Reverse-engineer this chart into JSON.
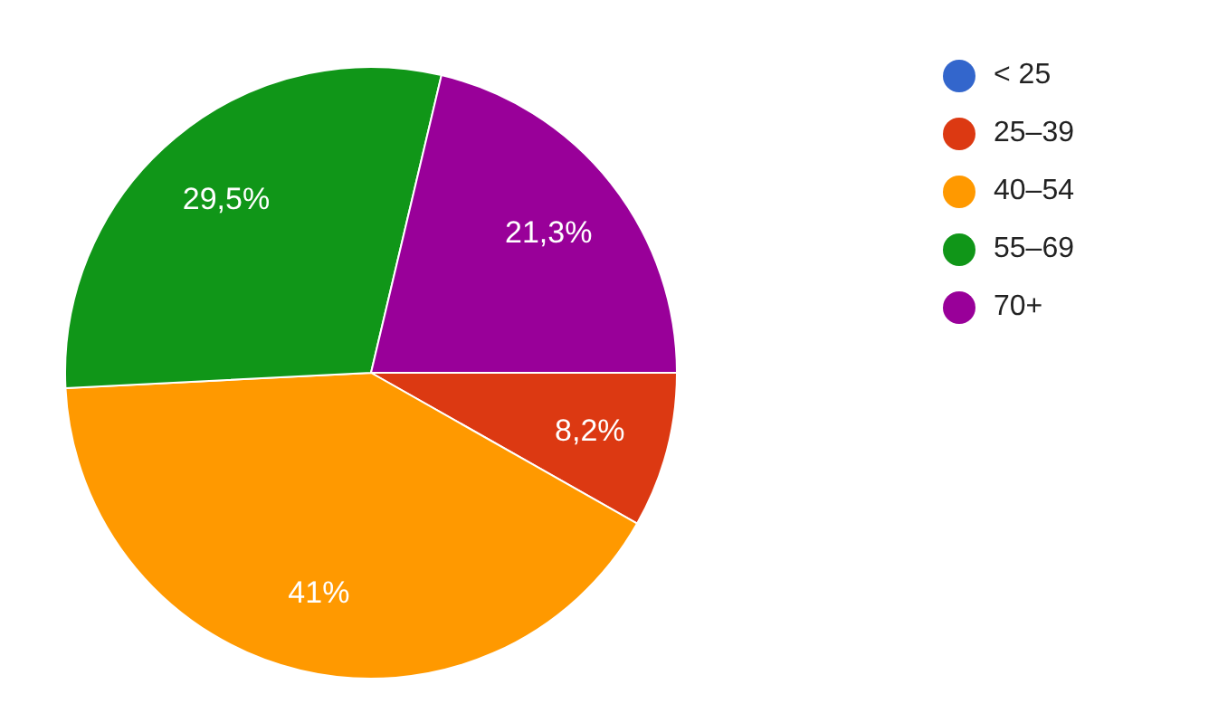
{
  "chart_data": {
    "type": "pie",
    "categories": [
      "< 25",
      "25–39",
      "40–54",
      "55–69",
      "70+"
    ],
    "values": [
      0,
      8.2,
      41,
      29.5,
      21.3
    ],
    "colors": [
      "#3366cc",
      "#dc3912",
      "#ff9900",
      "#109618",
      "#990099"
    ],
    "value_labels": [
      null,
      "8,2%",
      "41%",
      "29,5%",
      "21,3%"
    ],
    "legend": "top right"
  }
}
